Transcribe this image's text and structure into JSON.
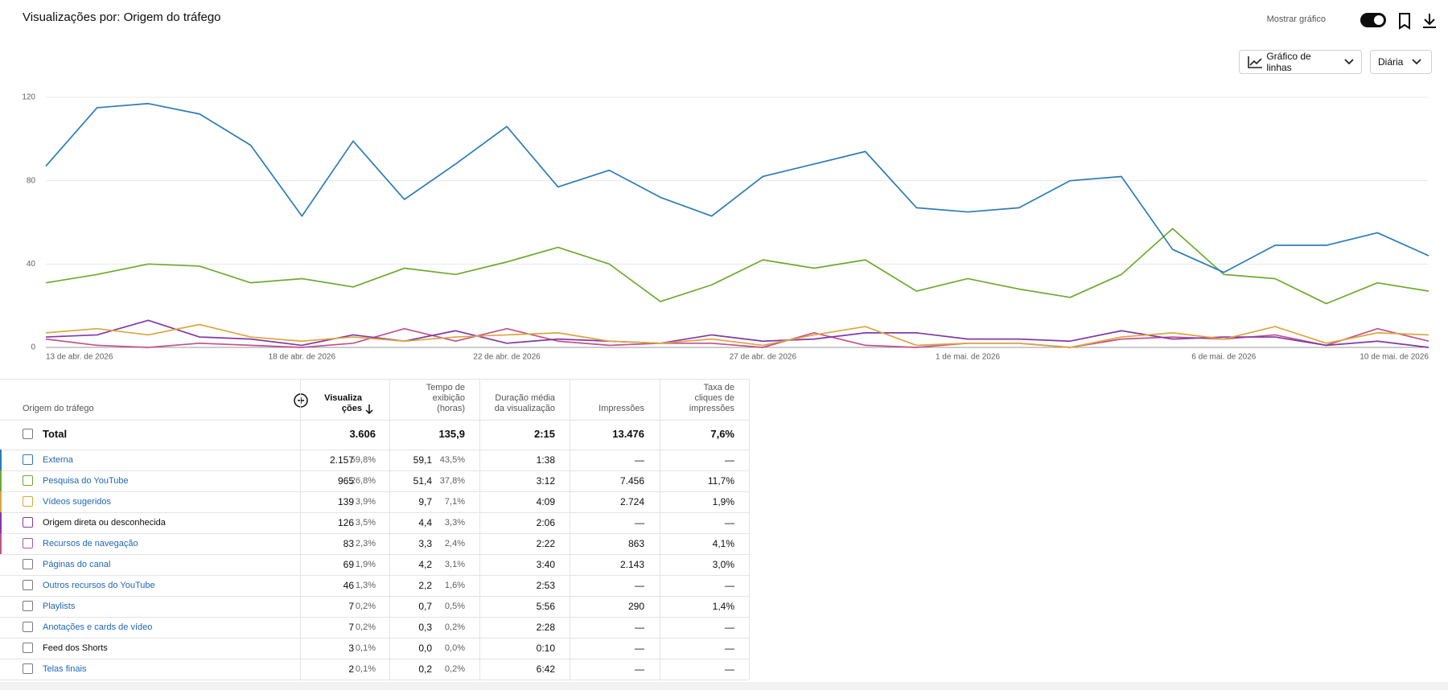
{
  "header": {
    "title": "Visualizações por: Origem do tráfego",
    "show_chart_label": "Mostrar gráfico",
    "chart_type_button": "Gráfico de linhas",
    "period_button": "Diária"
  },
  "chart_data": {
    "type": "line",
    "categories": [
      "13 de abr. de 2026",
      null,
      null,
      null,
      null,
      "18 de abr. de 2026",
      null,
      null,
      null,
      "22 de abr. de 2026",
      null,
      null,
      null,
      null,
      "27 de abr. de 2026",
      null,
      null,
      null,
      "1 de mai. de 2026",
      null,
      null,
      null,
      null,
      "6 de mai. de 2026",
      null,
      null,
      null,
      "10 de mai. de 2026"
    ],
    "series": [
      {
        "color": "#2b7cb8",
        "values": [
          87,
          115,
          117,
          112,
          97,
          63,
          99,
          71,
          88,
          106,
          77,
          85,
          72,
          63,
          82,
          88,
          94,
          67,
          65,
          67,
          80,
          82,
          47,
          36,
          49,
          49,
          55,
          44
        ]
      },
      {
        "color": "#6eaa2f",
        "values": [
          31,
          35,
          40,
          39,
          31,
          33,
          29,
          38,
          35,
          41,
          48,
          40,
          22,
          30,
          42,
          38,
          42,
          27,
          33,
          28,
          24,
          35,
          57,
          35,
          33,
          21,
          31,
          27
        ]
      },
      {
        "color": "#dba63c",
        "values": [
          7,
          9,
          6,
          11,
          5,
          3,
          5,
          3,
          5,
          6,
          7,
          3,
          2,
          4,
          1,
          6,
          10,
          1,
          2,
          2,
          0,
          5,
          7,
          4,
          10,
          2,
          7,
          6
        ]
      },
      {
        "color": "#8338a6",
        "values": [
          5,
          6,
          13,
          5,
          4,
          1,
          6,
          3,
          8,
          2,
          4,
          3,
          2,
          6,
          3,
          4,
          7,
          7,
          4,
          4,
          3,
          8,
          4,
          5,
          5,
          1,
          3,
          0
        ]
      },
      {
        "color": "#c2528c",
        "values": [
          4,
          1,
          0,
          2,
          1,
          0,
          2,
          9,
          3,
          9,
          3,
          1,
          2,
          2,
          0,
          7,
          1,
          0,
          2,
          2,
          0,
          4,
          5,
          4,
          6,
          1,
          9,
          3
        ]
      }
    ],
    "ylim": [
      0,
      120
    ],
    "yticks": [
      0,
      40,
      80,
      120
    ],
    "grid": true
  },
  "table": {
    "columns": [
      "Origem do tráfego",
      "Visualizações",
      "Tempo de exibição (horas)",
      "Duração média da visualização",
      "Impressões",
      "Taxa de cliques de impressões"
    ],
    "total": [
      "Total",
      "3.606",
      "135,9",
      "2:15",
      "13.476",
      "7,6%"
    ],
    "rows": [
      {
        "link": true,
        "cells": [
          "Externa",
          "2.157",
          "59,8%",
          "59,1",
          "43,5%",
          "1:38",
          "—",
          "—"
        ]
      },
      {
        "link": true,
        "cells": [
          "Pesquisa do YouTube",
          "965",
          "26,8%",
          "51,4",
          "37,8%",
          "3:12",
          "7.456",
          "11,7%"
        ]
      },
      {
        "link": true,
        "cells": [
          "Vídeos sugeridos",
          "139",
          "3,9%",
          "9,7",
          "7,1%",
          "4:09",
          "2.724",
          "1,9%"
        ]
      },
      {
        "link": false,
        "cells": [
          "Origem direta ou desconhecida",
          "126",
          "3,5%",
          "4,4",
          "3,3%",
          "2:06",
          "—",
          "—"
        ]
      },
      {
        "link": true,
        "cells": [
          "Recursos de navegação",
          "83",
          "2,3%",
          "3,3",
          "2,4%",
          "2:22",
          "863",
          "4,1%"
        ]
      },
      {
        "link": true,
        "cells": [
          "Páginas do canal",
          "69",
          "1,9%",
          "4,2",
          "3,1%",
          "3:40",
          "2.143",
          "3,0%"
        ]
      },
      {
        "link": true,
        "cells": [
          "Outros recursos do YouTube",
          "46",
          "1,3%",
          "2,2",
          "1,6%",
          "2:53",
          "—",
          "—"
        ]
      },
      {
        "link": true,
        "cells": [
          "Playlists",
          "7",
          "0,2%",
          "0,7",
          "0,5%",
          "5:56",
          "290",
          "1,4%"
        ]
      },
      {
        "link": true,
        "cells": [
          "Anotações e cards de vídeo",
          "7",
          "0,2%",
          "0,3",
          "0,2%",
          "2:28",
          "—",
          "—"
        ]
      },
      {
        "link": false,
        "cells": [
          "Feed dos Shorts",
          "3",
          "0,1%",
          "0,0",
          "0,0%",
          "0:10",
          "—",
          "—"
        ]
      },
      {
        "link": true,
        "cells": [
          "Telas finais",
          "2",
          "0,1%",
          "0,2",
          "0,2%",
          "6:42",
          "—",
          "—"
        ]
      }
    ]
  }
}
